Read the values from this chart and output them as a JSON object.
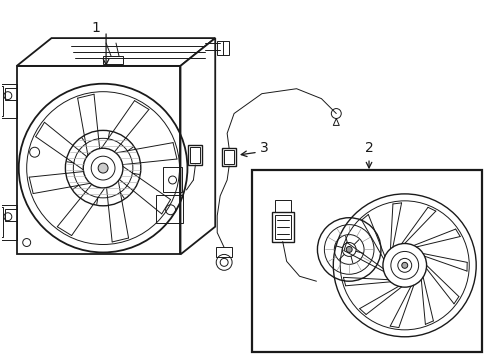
{
  "bg_color": "#ffffff",
  "line_color": "#1a1a1a",
  "lw_main": 1.3,
  "lw_thin": 0.7,
  "lw_med": 1.0,
  "label_fontsize": 10,
  "figsize": [
    4.89,
    3.6
  ],
  "dpi": 100,
  "label_1": "1",
  "label_2": "2",
  "label_3": "3"
}
